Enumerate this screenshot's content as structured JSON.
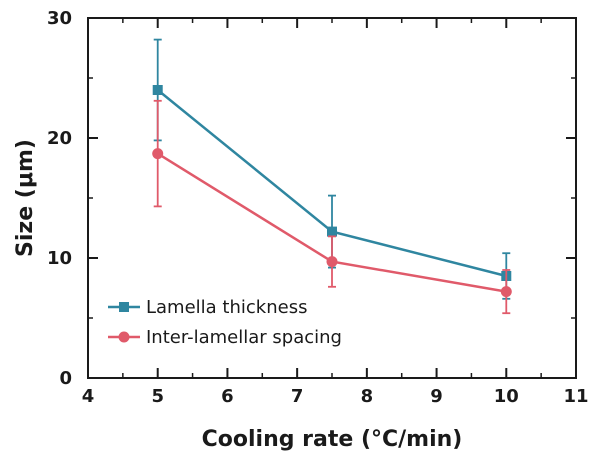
{
  "chart_data": {
    "type": "line",
    "title": "",
    "xlabel": "Cooling rate (°C/min)",
    "ylabel": "Size (μm)",
    "xlim": [
      4,
      11
    ],
    "ylim": [
      0,
      30
    ],
    "xticks": [
      "4",
      "5",
      "6",
      "7",
      "8",
      "9",
      "10",
      "11"
    ],
    "yticks": [
      "0",
      "10",
      "20",
      "30"
    ],
    "grid": false,
    "legend_position": "bottom-left",
    "series": [
      {
        "name": "Lamella thickness",
        "color": "#2f86a0",
        "marker": "square",
        "x": [
          5,
          7.5,
          10
        ],
        "y": [
          24.0,
          12.2,
          8.5
        ],
        "err": [
          4.2,
          3.0,
          1.9
        ]
      },
      {
        "name": "Inter-lamellar spacing",
        "color": "#e05a6a",
        "marker": "circle",
        "x": [
          5,
          7.5,
          10
        ],
        "y": [
          18.7,
          9.7,
          7.2
        ],
        "err": [
          4.4,
          2.1,
          1.8
        ]
      }
    ]
  }
}
